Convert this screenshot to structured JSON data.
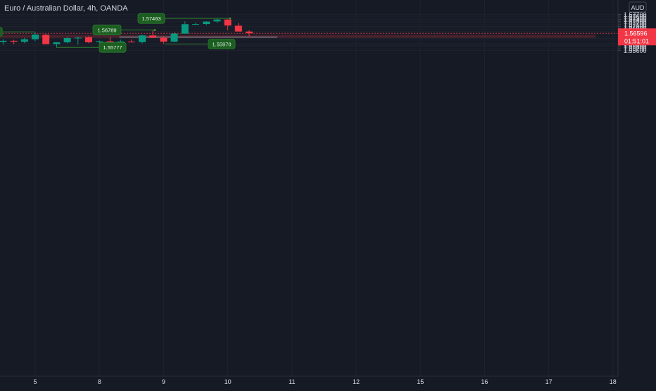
{
  "chart_data": {
    "type": "candlestick",
    "title": "Euro / Australian Dollar, 4h, OANDA",
    "currency": "AUD",
    "ylim": [
      1.5556,
      1.5777
    ],
    "y_ticks": [
      "1.55600",
      "1.55700",
      "1.55800",
      "1.55900",
      "1.56000",
      "1.56100",
      "1.56200",
      "1.56300",
      "1.56400",
      "1.56500",
      "1.56600",
      "1.56700",
      "1.56800",
      "1.56900",
      "1.57000",
      "1.57100",
      "1.57200",
      "1.57300",
      "1.57400",
      "1.57500",
      "1.57600",
      "1.57700"
    ],
    "x_ticks": [
      {
        "label": "5",
        "slot": -1
      },
      {
        "label": "8",
        "slot": 5
      },
      {
        "label": "9",
        "slot": 11
      },
      {
        "label": "10",
        "slot": 17
      },
      {
        "label": "11",
        "slot": 23
      },
      {
        "label": "12",
        "slot": 29
      },
      {
        "label": "15",
        "slot": 35
      },
      {
        "label": "16",
        "slot": 41
      },
      {
        "label": "17",
        "slot": 47
      },
      {
        "label": "18",
        "slot": 53
      }
    ],
    "candles": [
      {
        "slot": -4,
        "o": 1.5609,
        "h": 1.5625,
        "l": 1.5593,
        "c": 1.5616
      },
      {
        "slot": -3,
        "o": 1.5616,
        "h": 1.5622,
        "l": 1.5595,
        "c": 1.5611
      },
      {
        "slot": -2,
        "o": 1.561,
        "h": 1.5634,
        "l": 1.5602,
        "c": 1.5625
      },
      {
        "slot": -1,
        "o": 1.5625,
        "h": 1.5667,
        "l": 1.5614,
        "c": 1.5652
      },
      {
        "slot": 0,
        "o": 1.5651,
        "h": 1.5656,
        "l": 1.5595,
        "c": 1.5596
      },
      {
        "slot": 1,
        "o": 1.5596,
        "h": 1.5608,
        "l": 1.5578,
        "c": 1.5607
      },
      {
        "slot": 2,
        "o": 1.5607,
        "h": 1.5637,
        "l": 1.5601,
        "c": 1.5632
      },
      {
        "slot": 3,
        "o": 1.5632,
        "h": 1.5641,
        "l": 1.5593,
        "c": 1.5634
      },
      {
        "slot": 4,
        "o": 1.5637,
        "h": 1.5642,
        "l": 1.5602,
        "c": 1.5607
      },
      {
        "slot": 5,
        "o": 1.5608,
        "h": 1.5618,
        "l": 1.5596,
        "c": 1.5613
      },
      {
        "slot": 6,
        "o": 1.5613,
        "h": 1.564,
        "l": 1.56,
        "c": 1.5607
      },
      {
        "slot": 7,
        "o": 1.5607,
        "h": 1.5623,
        "l": 1.5597,
        "c": 1.5612
      },
      {
        "slot": 8,
        "o": 1.5611,
        "h": 1.5623,
        "l": 1.5605,
        "c": 1.5608
      },
      {
        "slot": 9,
        "o": 1.5608,
        "h": 1.5652,
        "l": 1.56,
        "c": 1.5647
      },
      {
        "slot": 10,
        "o": 1.5647,
        "h": 1.5679,
        "l": 1.5633,
        "c": 1.5634
      },
      {
        "slot": 11,
        "o": 1.5634,
        "h": 1.5643,
        "l": 1.5597,
        "c": 1.5611
      },
      {
        "slot": 12,
        "o": 1.5611,
        "h": 1.5664,
        "l": 1.5607,
        "c": 1.5658
      },
      {
        "slot": 13,
        "o": 1.5658,
        "h": 1.573,
        "l": 1.5657,
        "c": 1.5713
      },
      {
        "slot": 14,
        "o": 1.5714,
        "h": 1.5722,
        "l": 1.5707,
        "c": 1.5714
      },
      {
        "slot": 15,
        "o": 1.5714,
        "h": 1.573,
        "l": 1.5706,
        "c": 1.5728
      },
      {
        "slot": 16,
        "o": 1.5729,
        "h": 1.5746,
        "l": 1.572,
        "c": 1.574
      },
      {
        "slot": 17,
        "o": 1.574,
        "h": 1.5742,
        "l": 1.5677,
        "c": 1.5705
      },
      {
        "slot": 18,
        "o": 1.5704,
        "h": 1.5719,
        "l": 1.567,
        "c": 1.567
      },
      {
        "slot": 19,
        "o": 1.567,
        "h": 1.5677,
        "l": 1.5641,
        "c": 1.566
      }
    ],
    "current_price": {
      "label": "1.56596",
      "countdown": "01:51:01",
      "value": 1.56596,
      "color": "#f23645"
    },
    "zone": {
      "from": 1.5633,
      "to": 1.565,
      "color": "#f23645"
    },
    "box": {
      "from": 1.5634,
      "to": 1.5641,
      "start_slot": 6.9,
      "end_slot": 21.6
    },
    "annotations": [
      {
        "label": "1.57463",
        "value": 1.57463,
        "slot": 16
      },
      {
        "label": "1.56789",
        "value": 1.56789,
        "slot": 10
      },
      {
        "label": "",
        "value": 1.56678,
        "slot": -1
      },
      {
        "label": "1.55970",
        "value": 1.5597,
        "slot": 11
      },
      {
        "label": "1.55777",
        "value": 1.55777,
        "slot": 1
      }
    ],
    "colors": {
      "background": "#161a25",
      "up": "#089981",
      "down": "#f23645",
      "grid": "#1e222d",
      "text": "#d1d4dc",
      "label_green": "#1b5e20"
    }
  }
}
